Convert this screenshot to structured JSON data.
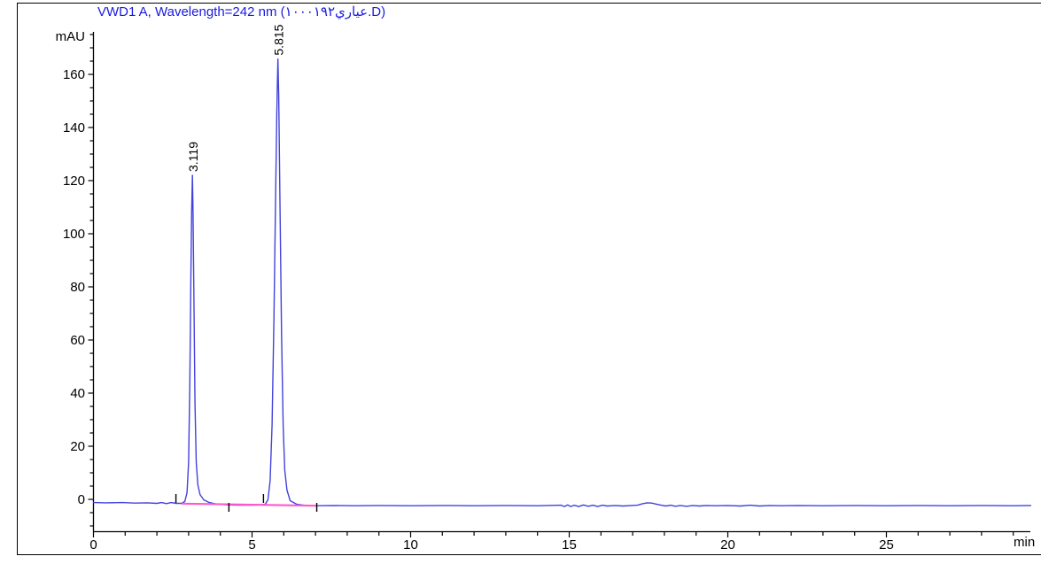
{
  "window": {
    "background": "#ffffff",
    "frame_color": "#000000"
  },
  "header": {
    "title": "VWD1 A, Wavelength=242 nm (عياري١٠٠٠١٩٢.D)",
    "title_color": "#1a1ae0"
  },
  "axes": {
    "y_unit_label": "mAU",
    "x_unit_label": "min"
  },
  "colors": {
    "trace": "#4242dc",
    "integration_baseline": "#ff59c9",
    "axis": "#000000",
    "peak_label": "#000000",
    "tick_label": "#000000"
  },
  "chart_data": {
    "type": "line",
    "title": "VWD1 A, Wavelength=242 nm (عياري١٠٠٠١٩٢.D)",
    "xlabel": "min",
    "ylabel": "mAU",
    "xlim": [
      0,
      29.6
    ],
    "ylim": [
      -12.5,
      175
    ],
    "grid": false,
    "legend_position": "none",
    "x_major_ticks": [
      0,
      5,
      10,
      15,
      20,
      25
    ],
    "x_minor_tick_step": 1,
    "y_major_ticks": [
      0,
      20,
      40,
      60,
      80,
      100,
      120,
      140,
      160
    ],
    "y_minor_tick_step": 5,
    "peaks": [
      {
        "retention_time_min": 3.119,
        "apex_mAU": 122,
        "label": "3.119"
      },
      {
        "retention_time_min": 5.815,
        "apex_mAU": 165.8,
        "label": "5.815"
      }
    ],
    "integration": {
      "baseline_points": [
        [
          2.78,
          -1.6
        ],
        [
          7.06,
          -2.4
        ]
      ],
      "tick_marks": [
        {
          "t": 2.6,
          "dir": "up"
        },
        {
          "t": 4.27,
          "dir": "down"
        },
        {
          "t": 5.36,
          "dir": "up"
        },
        {
          "t": 7.04,
          "dir": "down"
        }
      ]
    },
    "series": [
      {
        "name": "VWD1 A, 242 nm signal",
        "points": [
          [
            0,
            -1.2
          ],
          [
            0.4,
            -1.3
          ],
          [
            0.9,
            -1.2
          ],
          [
            1.3,
            -1.4
          ],
          [
            1.7,
            -1.3
          ],
          [
            2.0,
            -1.5
          ],
          [
            2.15,
            -1.2
          ],
          [
            2.3,
            -1.6
          ],
          [
            2.45,
            -1.2
          ],
          [
            2.6,
            -1.5
          ],
          [
            2.78,
            -1.5
          ],
          [
            2.88,
            -0.8
          ],
          [
            2.95,
            2.5
          ],
          [
            3.0,
            14
          ],
          [
            3.04,
            45
          ],
          [
            3.07,
            82
          ],
          [
            3.095,
            108
          ],
          [
            3.119,
            122
          ],
          [
            3.14,
            108
          ],
          [
            3.17,
            72
          ],
          [
            3.2,
            36
          ],
          [
            3.24,
            14
          ],
          [
            3.29,
            5.5
          ],
          [
            3.36,
            1.8
          ],
          [
            3.48,
            -0.2
          ],
          [
            3.65,
            -1.2
          ],
          [
            3.9,
            -1.8
          ],
          [
            4.27,
            -2.1
          ],
          [
            4.6,
            -2.2
          ],
          [
            4.95,
            -2.2
          ],
          [
            5.25,
            -2.1
          ],
          [
            5.42,
            -1.8
          ],
          [
            5.5,
            -0.2
          ],
          [
            5.57,
            7
          ],
          [
            5.63,
            28
          ],
          [
            5.69,
            68
          ],
          [
            5.74,
            112
          ],
          [
            5.78,
            145
          ],
          [
            5.8,
            157
          ],
          [
            5.815,
            165.8
          ],
          [
            5.84,
            152
          ],
          [
            5.88,
            112
          ],
          [
            5.93,
            62
          ],
          [
            5.98,
            28
          ],
          [
            6.03,
            11
          ],
          [
            6.1,
            3.5
          ],
          [
            6.2,
            -0.5
          ],
          [
            6.4,
            -1.8
          ],
          [
            6.7,
            -2.3
          ],
          [
            7.06,
            -2.4
          ],
          [
            7.5,
            -2.3
          ],
          [
            8.2,
            -2.4
          ],
          [
            9,
            -2.3
          ],
          [
            10,
            -2.4
          ],
          [
            11,
            -2.3
          ],
          [
            12,
            -2.4
          ],
          [
            13,
            -2.3
          ],
          [
            14,
            -2.4
          ],
          [
            14.75,
            -2.2
          ],
          [
            14.85,
            -2.7
          ],
          [
            14.95,
            -2.1
          ],
          [
            15.05,
            -2.7
          ],
          [
            15.15,
            -2.2
          ],
          [
            15.3,
            -2.7
          ],
          [
            15.45,
            -2.1
          ],
          [
            15.6,
            -2.6
          ],
          [
            15.75,
            -2.2
          ],
          [
            15.9,
            -2.7
          ],
          [
            16.05,
            -2.2
          ],
          [
            16.2,
            -2.5
          ],
          [
            16.45,
            -2.3
          ],
          [
            16.7,
            -2.5
          ],
          [
            16.95,
            -2.3
          ],
          [
            17.15,
            -2.2
          ],
          [
            17.3,
            -1.7
          ],
          [
            17.45,
            -1.3
          ],
          [
            17.6,
            -1.4
          ],
          [
            17.75,
            -1.8
          ],
          [
            17.9,
            -2.2
          ],
          [
            18.05,
            -2.5
          ],
          [
            18.2,
            -2.2
          ],
          [
            18.35,
            -2.6
          ],
          [
            18.5,
            -2.3
          ],
          [
            18.7,
            -2.6
          ],
          [
            18.9,
            -2.3
          ],
          [
            19.1,
            -2.5
          ],
          [
            19.3,
            -2.3
          ],
          [
            19.6,
            -2.4
          ],
          [
            20,
            -2.3
          ],
          [
            20.4,
            -2.5
          ],
          [
            20.7,
            -2.2
          ],
          [
            21,
            -2.5
          ],
          [
            21.3,
            -2.3
          ],
          [
            21.7,
            -2.4
          ],
          [
            22.2,
            -2.3
          ],
          [
            23,
            -2.4
          ],
          [
            24,
            -2.3
          ],
          [
            25,
            -2.4
          ],
          [
            26,
            -2.3
          ],
          [
            27,
            -2.4
          ],
          [
            28,
            -2.3
          ],
          [
            29,
            -2.4
          ],
          [
            29.55,
            -2.3
          ]
        ]
      }
    ]
  }
}
